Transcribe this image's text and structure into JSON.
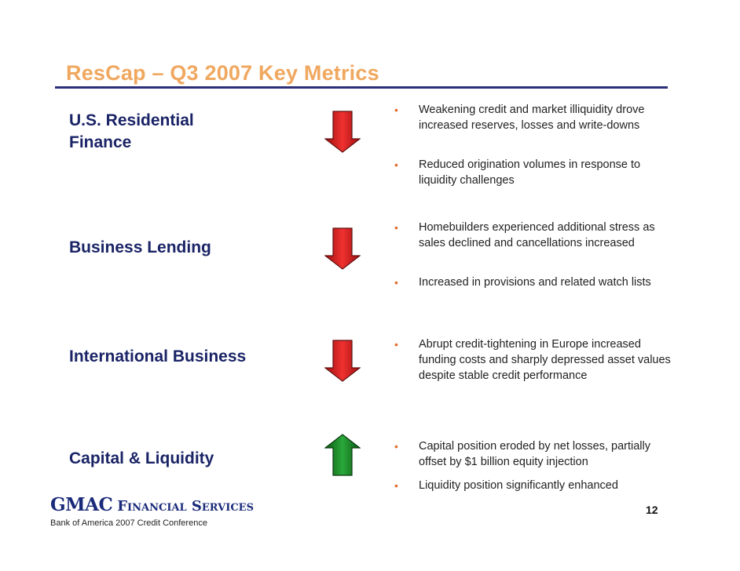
{
  "title": "ResCap – Q3 2007 Key Metrics",
  "segments": [
    {
      "label_lines": [
        "U.S. Residential",
        "Finance"
      ],
      "trend": "down",
      "trend_color": "#d42020",
      "bullets": [
        "Weakening credit and market illiquidity drove increased reserves, losses and write-downs",
        "Reduced origination volumes in response to liquidity challenges"
      ]
    },
    {
      "label_lines": [
        "Business Lending"
      ],
      "trend": "down",
      "trend_color": "#d42020",
      "bullets": [
        "Homebuilders experienced additional stress as sales declined and cancellations increased",
        "Increased in provisions and related watch lists"
      ]
    },
    {
      "label_lines": [
        "International Business"
      ],
      "trend": "down",
      "trend_color": "#d42020",
      "bullets": [
        "Abrupt credit-tightening in Europe increased funding costs and sharply depressed asset values despite stable credit performance"
      ]
    },
    {
      "label_lines": [
        "Capital & Liquidity"
      ],
      "trend": "up",
      "trend_color": "#1e8a2a",
      "bullets": [
        "Capital position eroded by net losses, partially offset by $1 billion equity injection",
        "Liquidity position significantly enhanced"
      ]
    }
  ],
  "bullet_marker": "•",
  "page_number": "12",
  "logo": {
    "primary": "GMAC",
    "secondary": "Financial Services"
  },
  "footer": "Bank of America 2007 Credit Conference",
  "colors": {
    "title": "#f0a860",
    "rule": "#2a2f78",
    "segment_text": "#1a2466"
  }
}
